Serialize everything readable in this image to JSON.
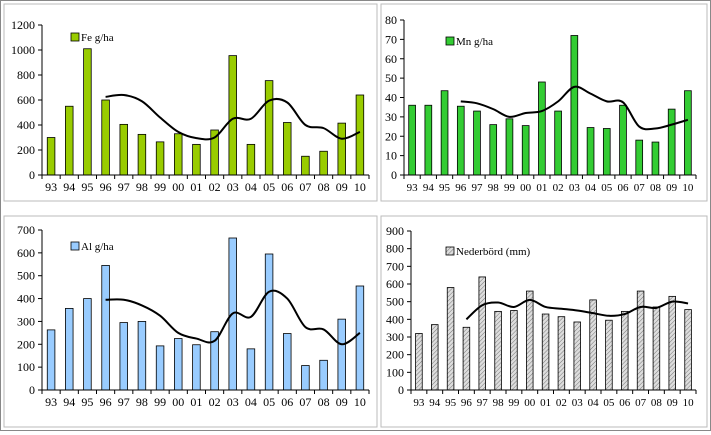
{
  "chart_data": [
    {
      "type": "bar",
      "legend": "Fe  g/ha",
      "legend_position": "top-left",
      "categories": [
        "93",
        "94",
        "95",
        "96",
        "97",
        "98",
        "99",
        "00",
        "01",
        "02",
        "03",
        "04",
        "05",
        "06",
        "07",
        "08",
        "09",
        "10"
      ],
      "values": [
        300,
        550,
        1010,
        600,
        405,
        325,
        265,
        330,
        245,
        360,
        955,
        245,
        755,
        420,
        150,
        190,
        415,
        640
      ],
      "trend": [
        null,
        null,
        null,
        625,
        640,
        590,
        460,
        345,
        295,
        300,
        450,
        450,
        595,
        580,
        400,
        375,
        290,
        345
      ],
      "ylim": [
        0,
        1200
      ],
      "yticks": [
        "0",
        "200",
        "400",
        "600",
        "800",
        "1000",
        "1200"
      ],
      "bar_color": "#99cc00",
      "bar_pattern": "solid"
    },
    {
      "type": "bar",
      "legend": "Mn  g/ha",
      "legend_position": "top-left",
      "categories": [
        "93",
        "94",
        "95",
        "96",
        "97",
        "98",
        "99",
        "00",
        "01",
        "02",
        "03",
        "04",
        "05",
        "06",
        "07",
        "08",
        "09",
        "10"
      ],
      "values": [
        36,
        36,
        43.5,
        35.5,
        33,
        26,
        29,
        25.5,
        48,
        33,
        72,
        24.5,
        24,
        36,
        18,
        17,
        34,
        43.5
      ],
      "trend": [
        null,
        null,
        null,
        38,
        37,
        34,
        30,
        32,
        33,
        38,
        45.5,
        42,
        38,
        37.5,
        25,
        24,
        26,
        28.5
      ],
      "ylim": [
        0,
        80
      ],
      "yticks": [
        "0",
        "10",
        "20",
        "30",
        "40",
        "50",
        "60",
        "70",
        "80"
      ],
      "bar_color": "#33cc33",
      "bar_pattern": "solid"
    },
    {
      "type": "bar",
      "legend": "Al  g/ha",
      "legend_position": "top-left",
      "categories": [
        "93",
        "94",
        "95",
        "96",
        "97",
        "98",
        "99",
        "00",
        "01",
        "02",
        "03",
        "04",
        "05",
        "06",
        "07",
        "08",
        "09",
        "10"
      ],
      "values": [
        263,
        357,
        400,
        545,
        295,
        300,
        193,
        225,
        198,
        255,
        665,
        180,
        595,
        247,
        107,
        130,
        310,
        455
      ],
      "trend": [
        null,
        null,
        null,
        395,
        395,
        370,
        325,
        250,
        225,
        215,
        335,
        320,
        430,
        400,
        275,
        265,
        200,
        250
      ],
      "ylim": [
        0,
        700
      ],
      "yticks": [
        "0",
        "100",
        "200",
        "300",
        "400",
        "500",
        "600",
        "700"
      ],
      "bar_color": "#99ccff",
      "bar_pattern": "solid"
    },
    {
      "type": "bar",
      "legend": "Nederbörd (mm)",
      "legend_position": "top-left",
      "categories": [
        "93",
        "94",
        "95",
        "96",
        "97",
        "98",
        "99",
        "00",
        "01",
        "02",
        "03",
        "04",
        "05",
        "06",
        "07",
        "08",
        "09",
        "10"
      ],
      "values": [
        320,
        370,
        580,
        355,
        640,
        445,
        450,
        560,
        430,
        415,
        385,
        510,
        395,
        445,
        560,
        470,
        530,
        455
      ],
      "trend": [
        null,
        null,
        null,
        400,
        480,
        495,
        470,
        510,
        470,
        460,
        450,
        435,
        420,
        430,
        470,
        465,
        500,
        490
      ],
      "ylim": [
        0,
        900
      ],
      "yticks": [
        "0",
        "100",
        "200",
        "300",
        "400",
        "500",
        "600",
        "700",
        "800",
        "900"
      ],
      "bar_color": "#cccccc",
      "bar_pattern": "hatched"
    }
  ]
}
